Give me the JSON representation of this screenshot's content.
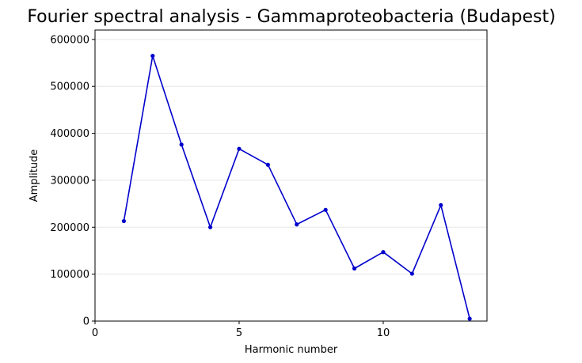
{
  "chart_data": {
    "type": "line",
    "title": "Fourier spectral analysis - Gammaproteobacteria (Budapest)",
    "xlabel": "Harmonic number",
    "ylabel": "Amplitude",
    "xlim": [
      0,
      13.6
    ],
    "ylim": [
      0,
      620000
    ],
    "xticks": [
      0,
      5,
      10
    ],
    "xtick_labels": [
      "0",
      "5",
      "10"
    ],
    "yticks": [
      0,
      100000,
      200000,
      300000,
      400000,
      500000,
      600000
    ],
    "ytick_labels": [
      "0",
      "100000",
      "200000",
      "300000",
      "400000",
      "500000",
      "600000"
    ],
    "grid": "horizontal",
    "series": [
      {
        "color": "#0000cc",
        "marker": "circle",
        "x": [
          1,
          2,
          3,
          4,
          5,
          6,
          7,
          8,
          9,
          10,
          11,
          12,
          13
        ],
        "values": [
          213000,
          565000,
          376000,
          200000,
          367000,
          333000,
          206000,
          237000,
          112000,
          147000,
          101000,
          247000,
          5000
        ]
      }
    ]
  }
}
